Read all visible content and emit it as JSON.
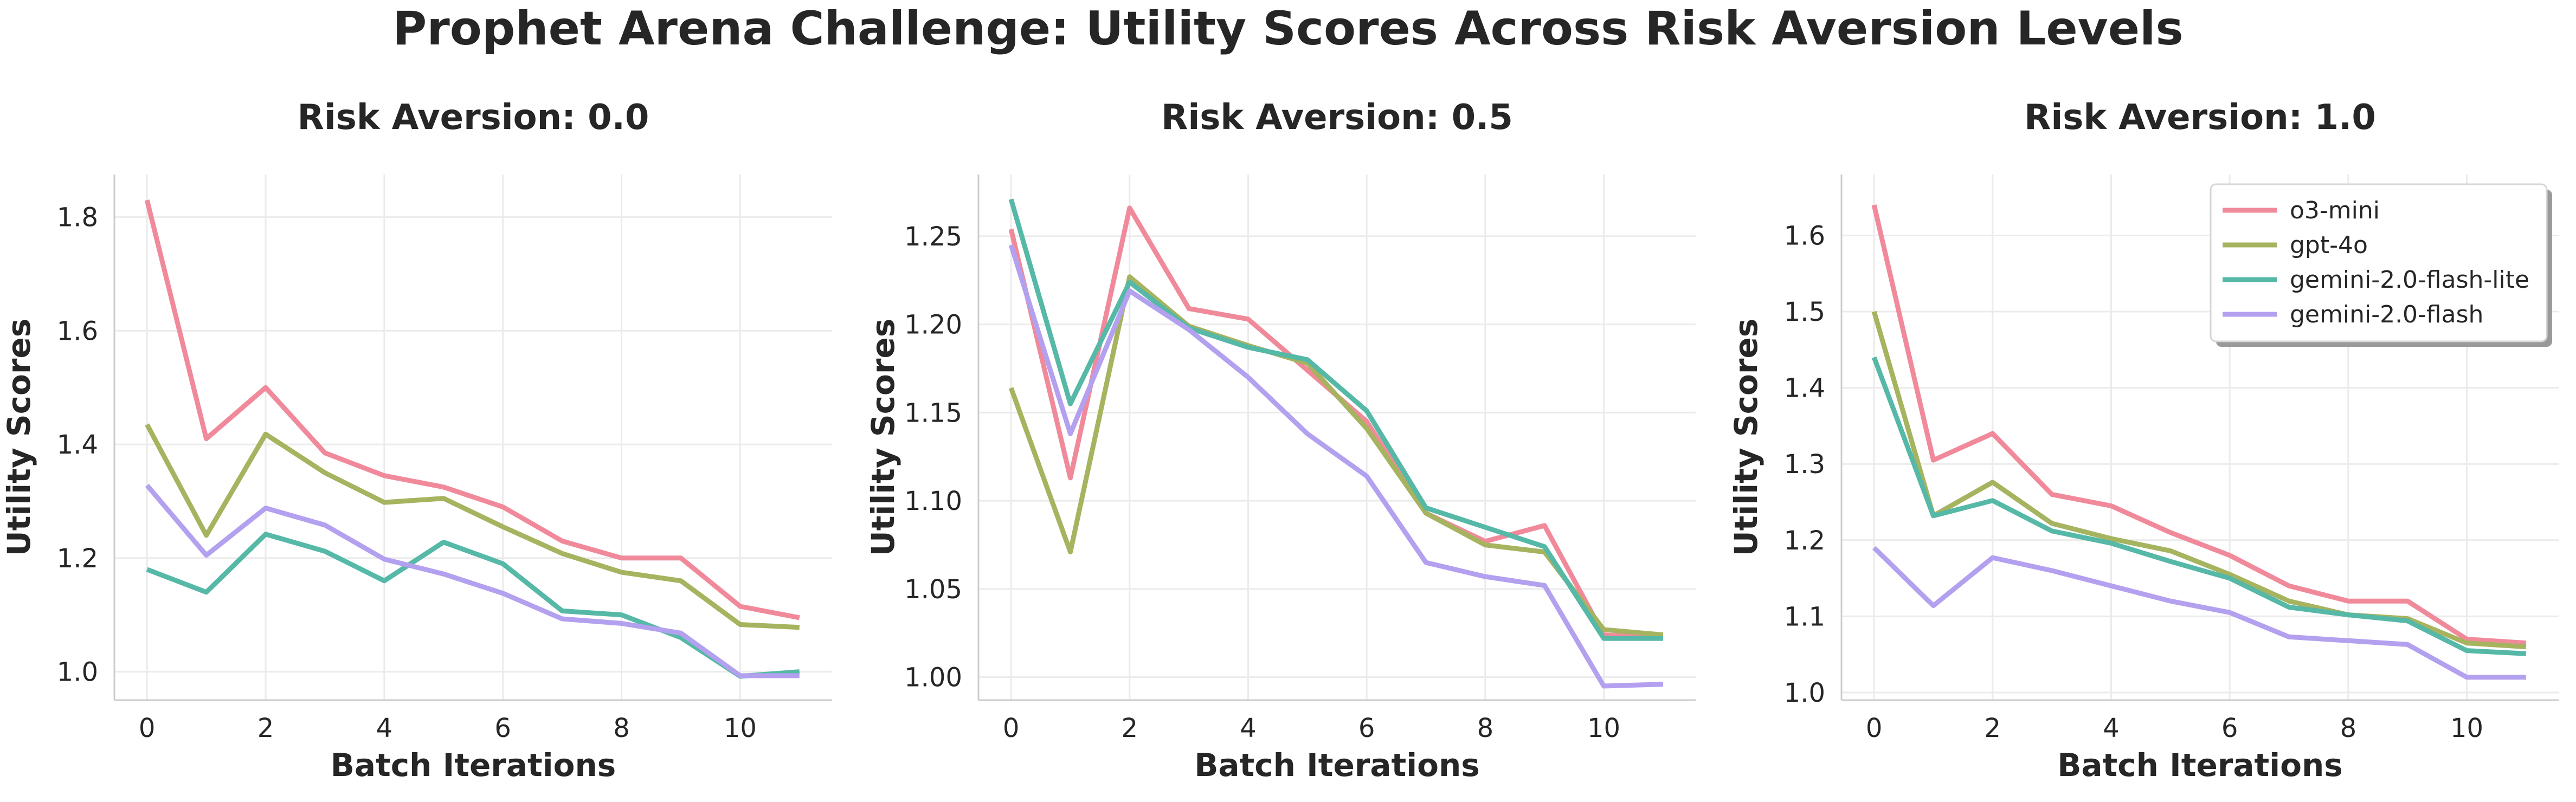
{
  "figure": {
    "title": "Prophet Arena Challenge: Utility Scores Across Risk Aversion Levels"
  },
  "series_colors": {
    "o3-mini": "#f08a9b",
    "gpt-4o": "#a6b35f",
    "gemini-2.0-flash-lite": "#56b8a7",
    "gemini-2.0-flash": "#b3a0ef"
  },
  "chart_data": [
    {
      "type": "line",
      "title": "Risk Aversion: 0.0",
      "xlabel": "Batch Iterations",
      "ylabel": "Utility Scores",
      "grid": true,
      "xlim": [
        -0.55,
        11.55
      ],
      "ylim": [
        0.95,
        1.875
      ],
      "xticks": [
        0,
        2,
        4,
        6,
        8,
        10
      ],
      "xtick_labels": [
        "0",
        "2",
        "4",
        "6",
        "8",
        "10"
      ],
      "yticks": [
        1.0,
        1.2,
        1.4,
        1.6,
        1.8
      ],
      "ytick_labels": [
        "1.0",
        "1.2",
        "1.4",
        "1.6",
        "1.8"
      ],
      "x": [
        0,
        1,
        2,
        3,
        4,
        5,
        6,
        7,
        8,
        9,
        10,
        11
      ],
      "series": [
        {
          "name": "o3-mini",
          "values": [
            1.83,
            1.41,
            1.5,
            1.385,
            1.345,
            1.325,
            1.29,
            1.23,
            1.2,
            1.2,
            1.115,
            1.095
          ]
        },
        {
          "name": "gpt-4o",
          "values": [
            1.435,
            1.24,
            1.418,
            1.35,
            1.298,
            1.305,
            1.255,
            1.208,
            1.175,
            1.16,
            1.083,
            1.078
          ]
        },
        {
          "name": "gemini-2.0-flash-lite",
          "values": [
            1.18,
            1.14,
            1.242,
            1.212,
            1.16,
            1.228,
            1.19,
            1.107,
            1.1,
            1.06,
            0.992,
            1.0
          ]
        },
        {
          "name": "gemini-2.0-flash",
          "values": [
            1.328,
            1.205,
            1.288,
            1.258,
            1.198,
            1.172,
            1.138,
            1.093,
            1.085,
            1.068,
            0.993,
            0.993
          ]
        }
      ]
    },
    {
      "type": "line",
      "title": "Risk Aversion: 0.5",
      "xlabel": "Batch Iterations",
      "ylabel": "Utility Scores",
      "grid": true,
      "xlim": [
        -0.55,
        11.55
      ],
      "ylim": [
        0.987,
        1.285
      ],
      "xticks": [
        0,
        2,
        4,
        6,
        8,
        10
      ],
      "xtick_labels": [
        "0",
        "2",
        "4",
        "6",
        "8",
        "10"
      ],
      "yticks": [
        1.0,
        1.05,
        1.1,
        1.15,
        1.2,
        1.25
      ],
      "ytick_labels": [
        "1.00",
        "1.05",
        "1.10",
        "1.15",
        "1.20",
        "1.25"
      ],
      "x": [
        0,
        1,
        2,
        3,
        4,
        5,
        6,
        7,
        8,
        9,
        10,
        11
      ],
      "series": [
        {
          "name": "o3-mini",
          "values": [
            1.254,
            1.113,
            1.266,
            1.209,
            1.203,
            1.174,
            1.145,
            1.093,
            1.077,
            1.086,
            1.024,
            1.022
          ]
        },
        {
          "name": "gpt-4o",
          "values": [
            1.164,
            1.071,
            1.227,
            1.199,
            1.188,
            1.178,
            1.141,
            1.093,
            1.075,
            1.071,
            1.027,
            1.024
          ]
        },
        {
          "name": "gemini-2.0-flash-lite",
          "values": [
            1.271,
            1.155,
            1.224,
            1.198,
            1.187,
            1.18,
            1.151,
            1.096,
            1.085,
            1.074,
            1.022,
            1.022
          ]
        },
        {
          "name": "gemini-2.0-flash",
          "values": [
            1.245,
            1.138,
            1.219,
            1.197,
            1.17,
            1.138,
            1.114,
            1.065,
            1.057,
            1.052,
            0.995,
            0.996
          ]
        }
      ]
    },
    {
      "type": "line",
      "title": "Risk Aversion: 1.0",
      "xlabel": "Batch Iterations",
      "ylabel": "Utility Scores",
      "grid": true,
      "legend_position": "top-right",
      "xlim": [
        -0.55,
        11.55
      ],
      "ylim": [
        0.99,
        1.68
      ],
      "xticks": [
        0,
        2,
        4,
        6,
        8,
        10
      ],
      "xtick_labels": [
        "0",
        "2",
        "4",
        "6",
        "8",
        "10"
      ],
      "yticks": [
        1.0,
        1.1,
        1.2,
        1.3,
        1.4,
        1.5,
        1.6
      ],
      "ytick_labels": [
        "1.0",
        "1.1",
        "1.2",
        "1.3",
        "1.4",
        "1.5",
        "1.6"
      ],
      "x": [
        0,
        1,
        2,
        3,
        4,
        5,
        6,
        7,
        8,
        9,
        10,
        11
      ],
      "series": [
        {
          "name": "o3-mini",
          "values": [
            1.64,
            1.305,
            1.34,
            1.26,
            1.245,
            1.21,
            1.18,
            1.14,
            1.12,
            1.12,
            1.07,
            1.065
          ]
        },
        {
          "name": "gpt-4o",
          "values": [
            1.5,
            1.232,
            1.276,
            1.222,
            1.202,
            1.186,
            1.155,
            1.12,
            1.102,
            1.097,
            1.065,
            1.06
          ]
        },
        {
          "name": "gemini-2.0-flash-lite",
          "values": [
            1.44,
            1.232,
            1.252,
            1.212,
            1.196,
            1.172,
            1.15,
            1.112,
            1.102,
            1.094,
            1.055,
            1.051
          ]
        },
        {
          "name": "gemini-2.0-flash",
          "values": [
            1.19,
            1.114,
            1.177,
            1.16,
            1.14,
            1.12,
            1.105,
            1.073,
            1.068,
            1.063,
            1.02,
            1.02
          ]
        }
      ]
    }
  ]
}
